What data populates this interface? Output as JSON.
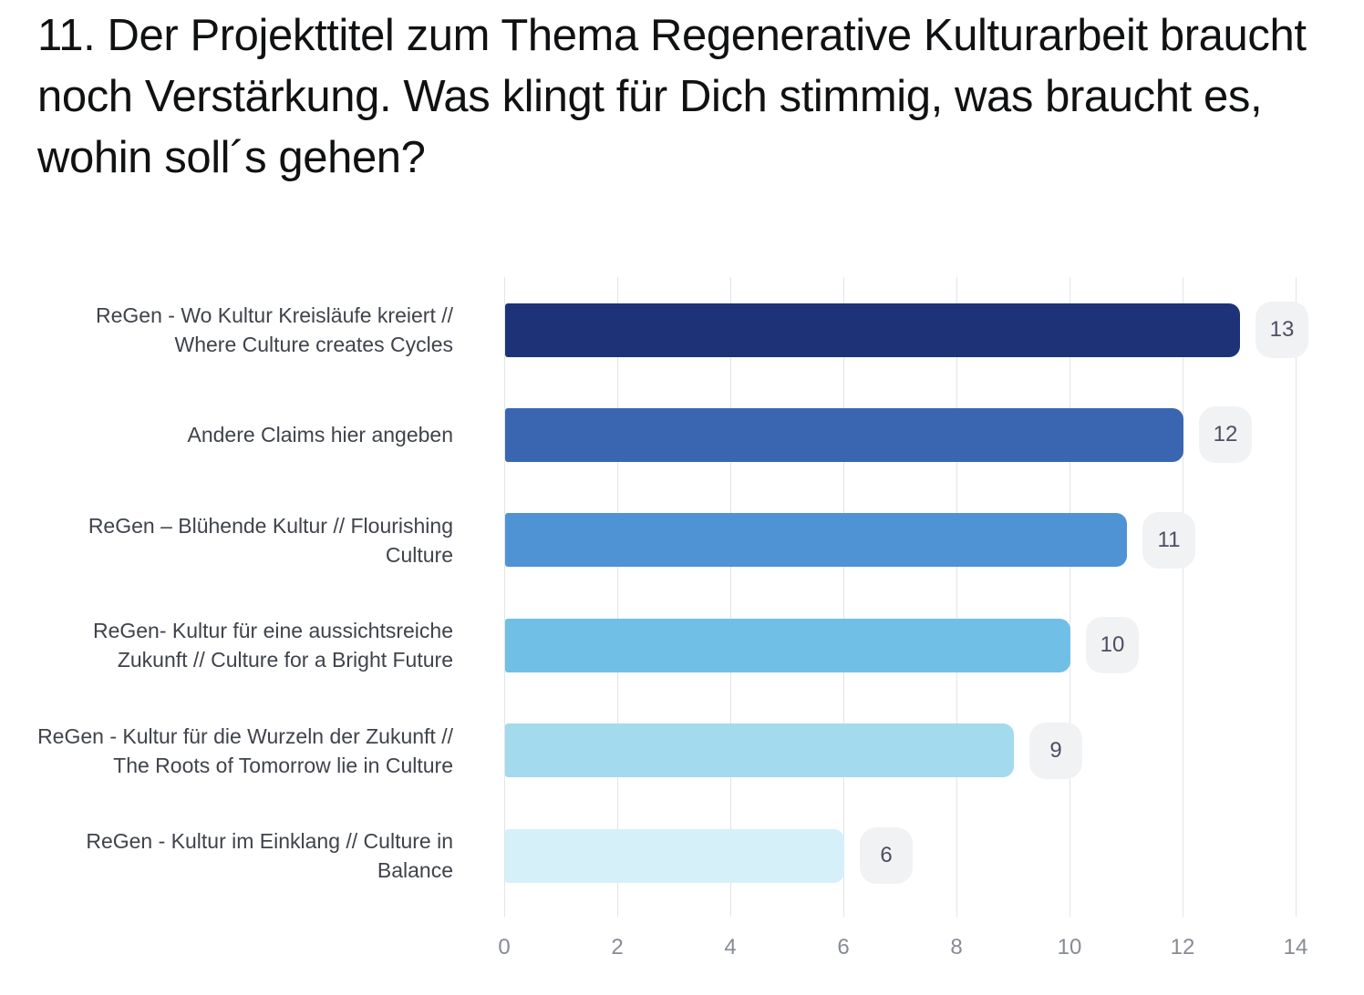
{
  "page": {
    "title": "11. Der Projekttitel zum Thema Regenerative Kulturarbeit braucht noch Verstärkung. Was klingt für Dich stimmig, was braucht es, wohin soll´s gehen?"
  },
  "chart_data": {
    "type": "bar",
    "orientation": "horizontal",
    "title": "11. Der Projekttitel zum Thema Regenerative Kulturarbeit braucht noch Verstärkung. Was klingt für Dich stimmig, was braucht es, wohin soll´s gehen?",
    "categories": [
      "ReGen - Wo Kultur Kreisläufe kreiert // Where Culture creates Cycles",
      "Andere Claims hier angeben",
      "ReGen – Blühende Kultur // Flourishing Culture",
      "ReGen- Kultur für eine aussichtsreiche Zukunft // Culture for a Bright Future",
      "ReGen - Kultur für die Wurzeln der Zukunft // The Roots of Tomorrow lie in Culture",
      "ReGen - Kultur im Einklang // Culture in Balance"
    ],
    "values": [
      13,
      12,
      11,
      10,
      9,
      6
    ],
    "bar_colors": [
      "#1e3277",
      "#3a66b1",
      "#5093d5",
      "#70bfe6",
      "#a3daee",
      "#d6f0f9"
    ],
    "x_ticks": [
      0,
      2,
      4,
      6,
      8,
      10,
      12,
      14
    ],
    "xlim": [
      0,
      14
    ],
    "xlabel": "",
    "ylabel": "",
    "grid": "vertical",
    "legend": "none",
    "value_labels": "badge-right-of-bar",
    "badge_bg_color": "#f1f2f3",
    "badge_text_color": "#4d4d66",
    "gridline_color": "#e2e4e7",
    "category_label_color": "#3f434a",
    "tick_label_color": "#878b93"
  }
}
